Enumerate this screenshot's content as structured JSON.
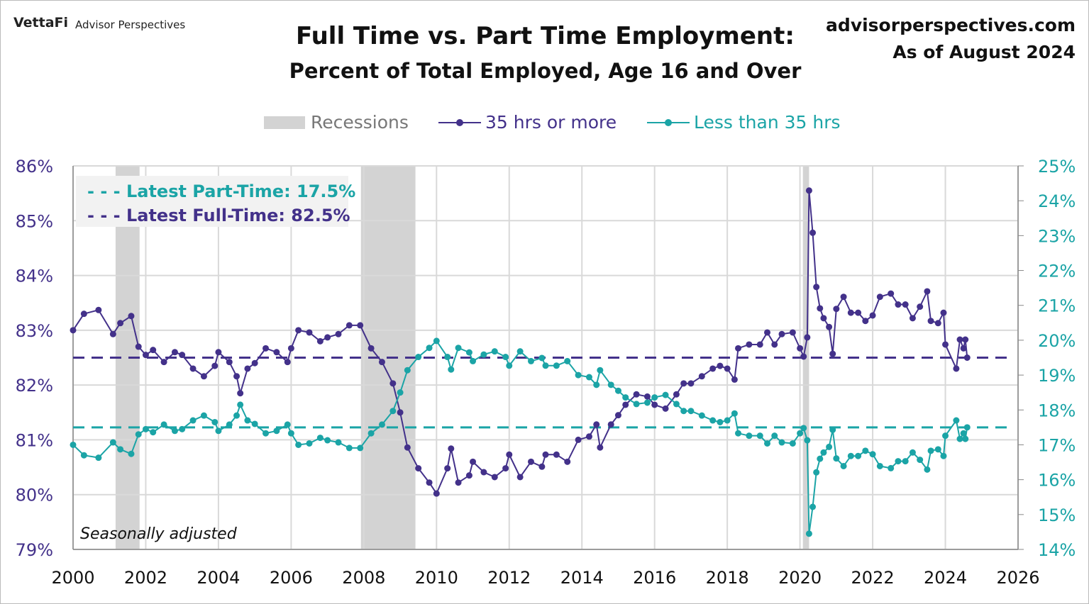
{
  "header": {
    "logo": "VettaFi",
    "logo_sub": "Advisor Perspectives",
    "site": "advisorperspectives.com",
    "as_of": "As of August 2024"
  },
  "chart_data": {
    "type": "line",
    "title": "Full Time vs. Part Time Employment:",
    "subtitle": "Percent of Total Employed, Age 16 and Over",
    "note": "Seasonally adjusted",
    "legend": {
      "recessions": "Recessions",
      "full": "35 hrs or more",
      "part": "Less than 35 hrs",
      "placement": "top"
    },
    "annotations": {
      "part": "- - - Latest Part-Time: 17.5%",
      "full": "- - - Latest Full-Time: 82.5%"
    },
    "latest": {
      "full": 82.5,
      "part": 17.5
    },
    "colors": {
      "full": "#43318a",
      "part": "#1ba4a6",
      "recession": "#d3d3d3"
    },
    "xlim": [
      2000,
      2026
    ],
    "x_ticks": [
      "2000",
      "2002",
      "2004",
      "2006",
      "2008",
      "2010",
      "2012",
      "2014",
      "2016",
      "2018",
      "2020",
      "2022",
      "2024",
      "2026"
    ],
    "ylim_left": [
      79,
      86
    ],
    "y_left_ticks": [
      "79%",
      "80%",
      "81%",
      "82%",
      "83%",
      "84%",
      "85%",
      "86%"
    ],
    "ylim_right": [
      14,
      25
    ],
    "y_right_ticks": [
      "14%",
      "15%",
      "16%",
      "17%",
      "18%",
      "19%",
      "20%",
      "21%",
      "22%",
      "23%",
      "24%",
      "25%"
    ],
    "grid": true,
    "recessions": [
      [
        2001.17,
        2001.83
      ],
      [
        2007.92,
        2009.42
      ],
      [
        2020.08,
        2020.25
      ]
    ],
    "x": [
      2000.0,
      2000.3,
      2000.7,
      2001.1,
      2001.3,
      2001.6,
      2001.8,
      2002.0,
      2002.2,
      2002.5,
      2002.8,
      2003.0,
      2003.3,
      2003.6,
      2003.9,
      2004.0,
      2004.3,
      2004.5,
      2004.6,
      2004.8,
      2005.0,
      2005.3,
      2005.6,
      2005.9,
      2006.0,
      2006.2,
      2006.5,
      2006.8,
      2007.0,
      2007.3,
      2007.6,
      2007.9,
      2008.2,
      2008.5,
      2008.8,
      2009.0,
      2009.2,
      2009.5,
      2009.8,
      2010.0,
      2010.3,
      2010.4,
      2010.6,
      2010.9,
      2011.0,
      2011.3,
      2011.6,
      2011.9,
      2012.0,
      2012.3,
      2012.6,
      2012.9,
      2013.0,
      2013.3,
      2013.6,
      2013.9,
      2014.2,
      2014.4,
      2014.5,
      2014.8,
      2015.0,
      2015.2,
      2015.5,
      2015.8,
      2016.0,
      2016.3,
      2016.6,
      2016.8,
      2017.0,
      2017.3,
      2017.6,
      2017.8,
      2018.0,
      2018.2,
      2018.3,
      2018.6,
      2018.9,
      2019.1,
      2019.3,
      2019.5,
      2019.8,
      2020.0,
      2020.1,
      2020.2,
      2020.25,
      2020.35,
      2020.45,
      2020.55,
      2020.65,
      2020.8,
      2020.9,
      2021.0,
      2021.2,
      2021.4,
      2021.6,
      2021.8,
      2022.0,
      2022.2,
      2022.5,
      2022.7,
      2022.9,
      2023.1,
      2023.3,
      2023.5,
      2023.6,
      2023.8,
      2023.95,
      2024.0,
      2024.3,
      2024.4,
      2024.5,
      2024.55,
      2024.6
    ],
    "series": [
      {
        "name": "35 hrs or more",
        "axis": "left",
        "values": [
          83.0,
          83.3,
          83.37,
          82.93,
          83.13,
          83.26,
          82.7,
          82.55,
          82.64,
          82.42,
          82.6,
          82.55,
          82.3,
          82.16,
          82.35,
          82.6,
          82.42,
          82.16,
          81.85,
          82.3,
          82.4,
          82.67,
          82.6,
          82.42,
          82.67,
          83.0,
          82.96,
          82.8,
          82.87,
          82.93,
          83.09,
          83.09,
          82.67,
          82.42,
          82.03,
          81.5,
          80.86,
          80.48,
          80.22,
          80.02,
          80.48,
          80.84,
          80.22,
          80.35,
          80.6,
          80.41,
          80.32,
          80.48,
          80.73,
          80.32,
          80.6,
          80.51,
          80.73,
          80.73,
          80.6,
          81.0,
          81.06,
          81.28,
          80.86,
          81.28,
          81.45,
          81.64,
          81.83,
          81.79,
          81.64,
          81.57,
          81.83,
          82.03,
          82.03,
          82.16,
          82.3,
          82.35,
          82.3,
          82.1,
          82.67,
          82.74,
          82.74,
          82.96,
          82.74,
          82.93,
          82.96,
          82.67,
          82.52,
          82.87,
          85.55,
          84.78,
          83.79,
          83.4,
          83.22,
          83.06,
          82.57,
          83.39,
          83.61,
          83.32,
          83.32,
          83.17,
          83.27,
          83.61,
          83.67,
          83.47,
          83.47,
          83.22,
          83.43,
          83.71,
          83.17,
          83.13,
          83.32,
          82.74,
          82.3,
          82.83,
          82.67,
          82.83,
          82.5
        ]
      },
      {
        "name": "Less than 35 hrs",
        "axis": "right",
        "values": [
          17.0,
          16.7,
          16.63,
          17.07,
          16.87,
          16.74,
          17.3,
          17.45,
          17.36,
          17.58,
          17.4,
          17.45,
          17.7,
          17.84,
          17.65,
          17.4,
          17.58,
          17.84,
          18.15,
          17.7,
          17.6,
          17.33,
          17.4,
          17.58,
          17.33,
          17.0,
          17.04,
          17.2,
          17.13,
          17.07,
          16.91,
          16.91,
          17.33,
          17.58,
          17.97,
          18.5,
          19.14,
          19.52,
          19.78,
          19.98,
          19.52,
          19.16,
          19.78,
          19.65,
          19.4,
          19.59,
          19.68,
          19.52,
          19.27,
          19.68,
          19.4,
          19.49,
          19.27,
          19.27,
          19.4,
          19.0,
          18.94,
          18.72,
          19.14,
          18.72,
          18.55,
          18.36,
          18.17,
          18.21,
          18.36,
          18.43,
          18.17,
          17.97,
          17.97,
          17.84,
          17.7,
          17.65,
          17.7,
          17.9,
          17.33,
          17.26,
          17.26,
          17.04,
          17.26,
          17.07,
          17.04,
          17.33,
          17.48,
          17.13,
          14.45,
          15.22,
          16.21,
          16.6,
          16.78,
          16.94,
          17.43,
          16.61,
          16.39,
          16.68,
          16.68,
          16.83,
          16.73,
          16.39,
          16.33,
          16.53,
          16.53,
          16.78,
          16.57,
          16.29,
          16.83,
          16.87,
          16.68,
          17.26,
          17.7,
          17.17,
          17.33,
          17.17,
          17.5
        ]
      }
    ]
  }
}
